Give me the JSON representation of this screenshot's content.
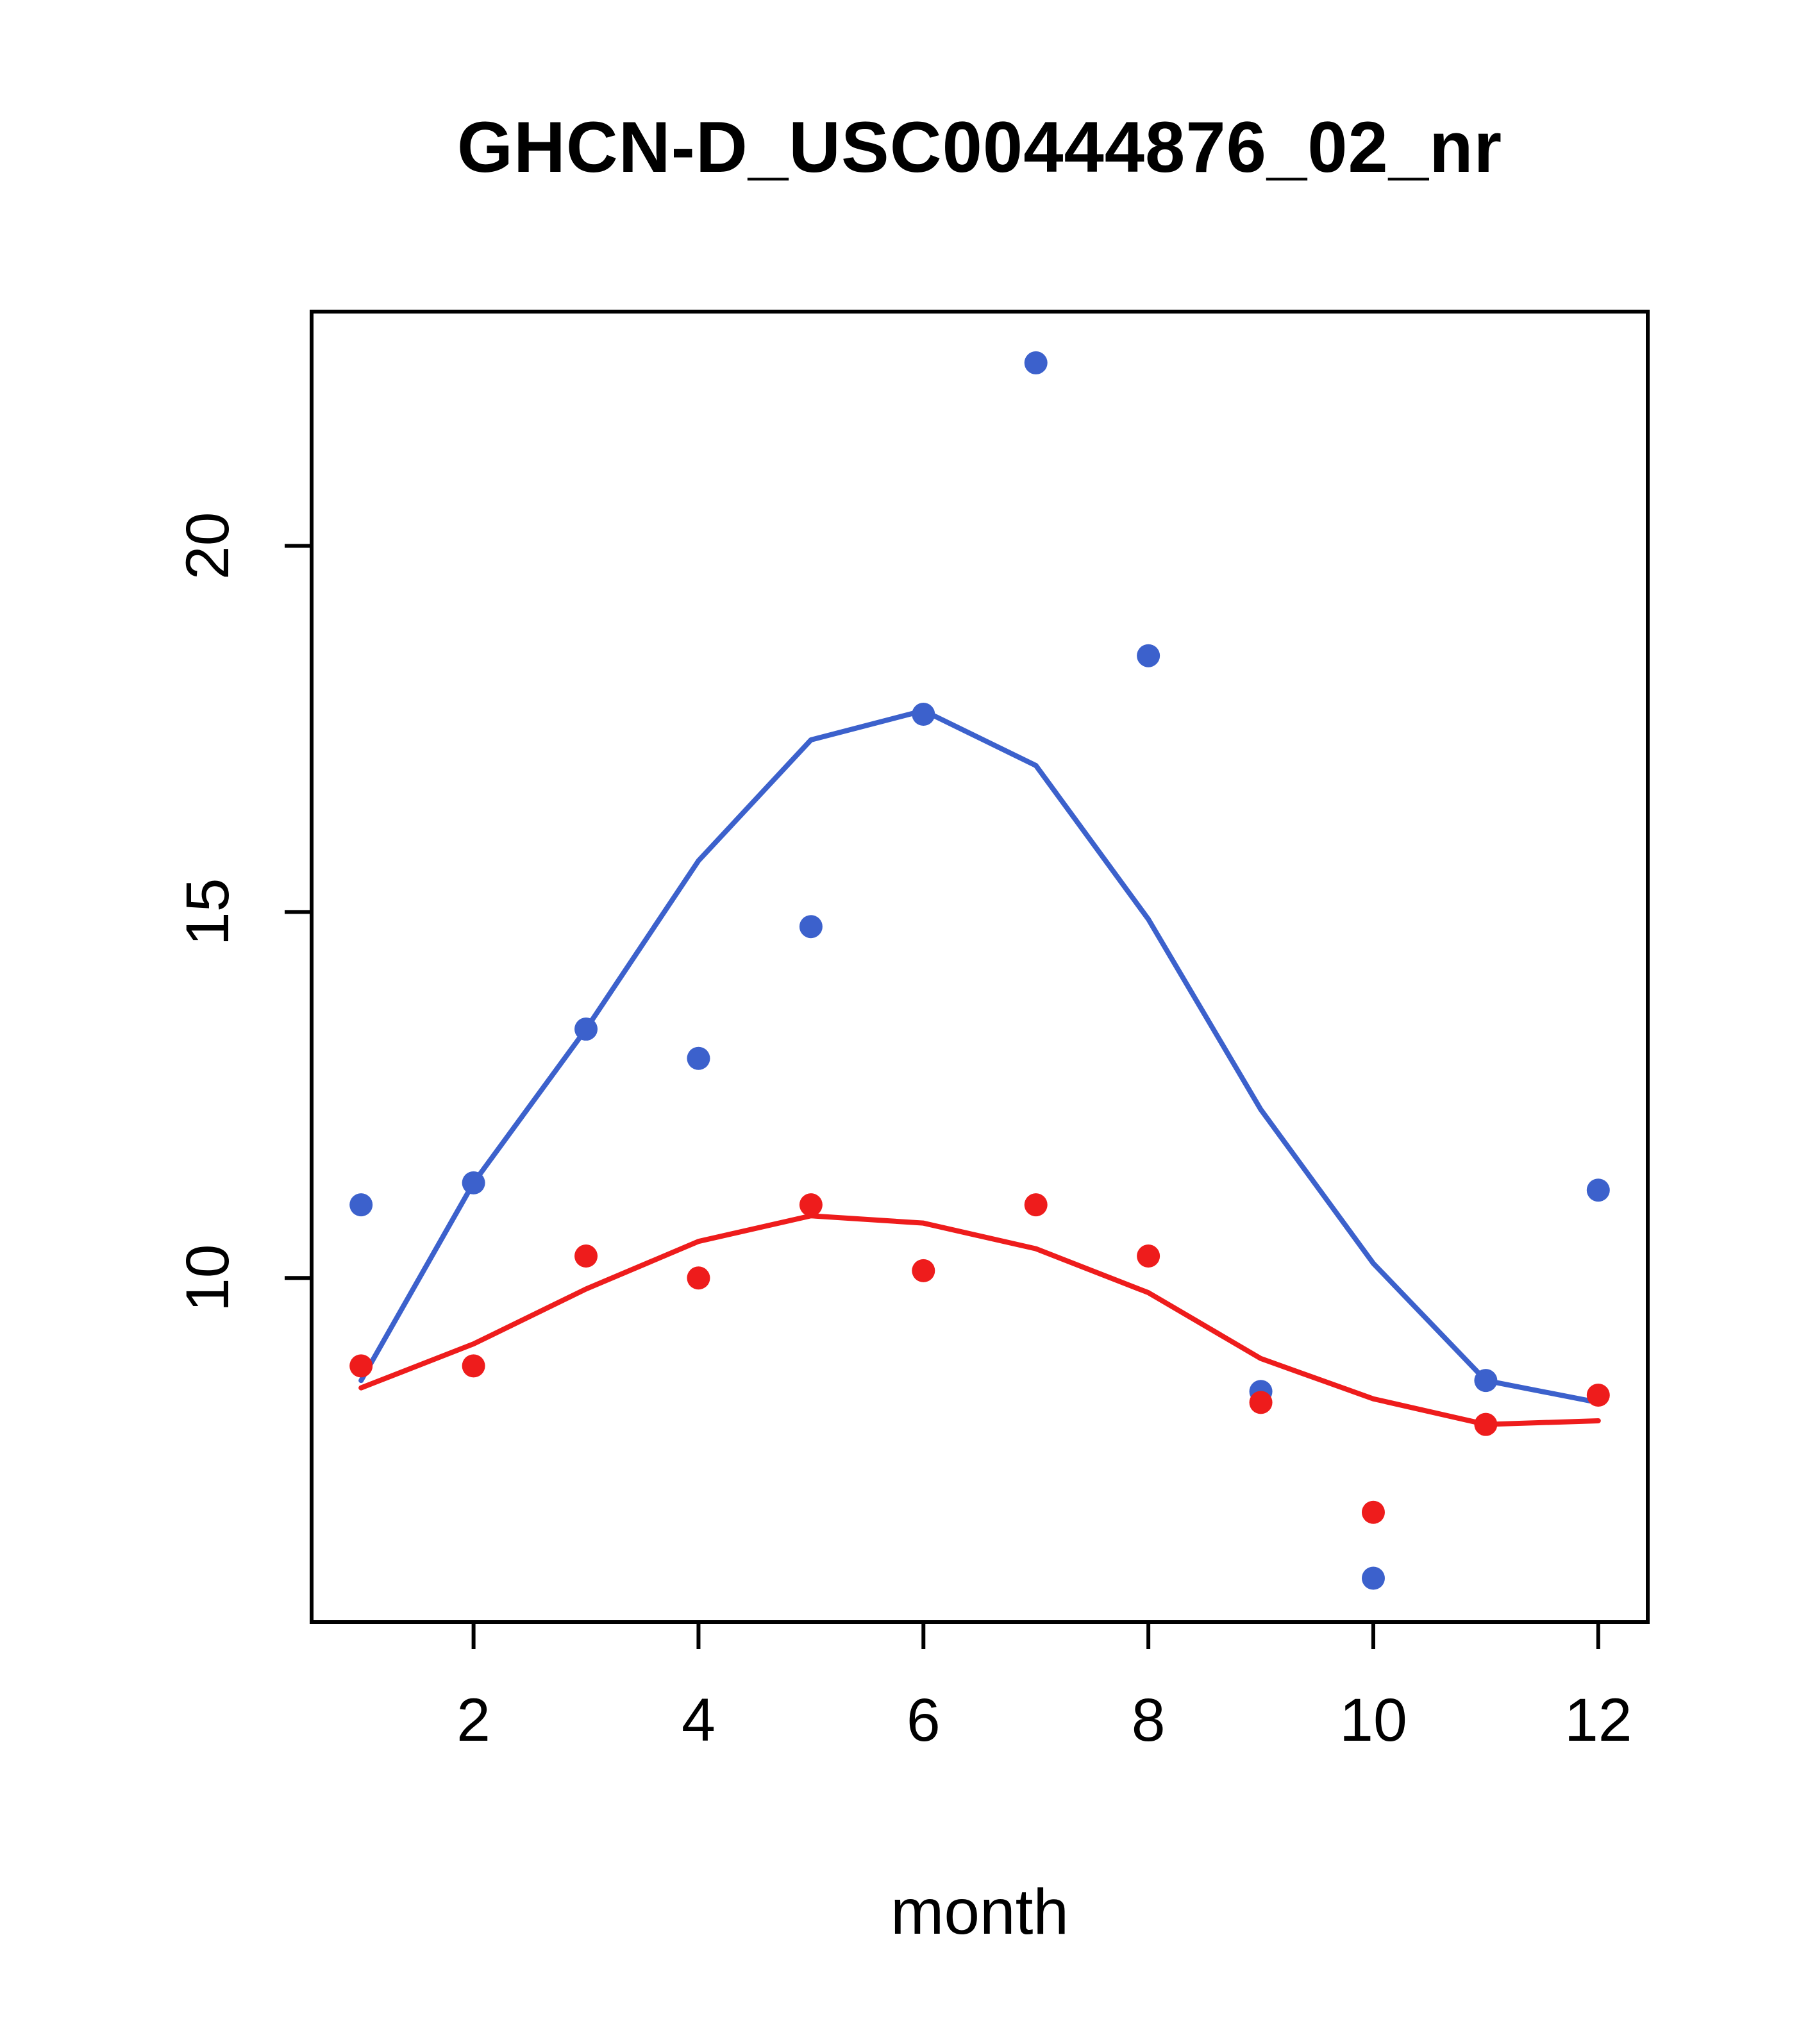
{
  "chart_data": {
    "type": "scatter",
    "title": "GHCN-D_USC00444876_02_nr",
    "xlabel": "month",
    "ylabel": "",
    "x": [
      1,
      2,
      3,
      4,
      5,
      6,
      7,
      8,
      9,
      10,
      11,
      12
    ],
    "x_ticks": [
      2,
      4,
      6,
      8,
      10,
      12
    ],
    "y_ticks": [
      10,
      15,
      20
    ],
    "xlim": [
      0.56,
      12.44
    ],
    "ylim": [
      5.3,
      23.2
    ],
    "grid": false,
    "legend": "none",
    "colors": {
      "blue": "#3C61CC",
      "red": "#EE1C1C"
    },
    "series": [
      {
        "name": "blue-points",
        "type": "points",
        "color": "#3C61CC",
        "values": [
          11.0,
          11.3,
          13.4,
          13.0,
          14.8,
          17.7,
          22.5,
          18.5,
          8.45,
          5.9,
          8.6,
          11.2
        ]
      },
      {
        "name": "red-points",
        "type": "points",
        "color": "#EE1C1C",
        "values": [
          8.8,
          8.8,
          10.3,
          10.0,
          11.0,
          10.1,
          11.0,
          10.3,
          8.3,
          6.8,
          8.0,
          8.4
        ]
      },
      {
        "name": "blue-smooth-line",
        "type": "line",
        "color": "#3C61CC",
        "values": [
          8.6,
          11.3,
          13.4,
          15.7,
          17.35,
          17.75,
          17.0,
          14.9,
          12.3,
          10.2,
          8.6,
          8.3
        ]
      },
      {
        "name": "red-smooth-line",
        "type": "line",
        "color": "#EE1C1C",
        "values": [
          8.5,
          9.1,
          9.85,
          10.5,
          10.85,
          10.75,
          10.4,
          9.8,
          8.9,
          8.35,
          8.0,
          8.05
        ]
      }
    ]
  }
}
